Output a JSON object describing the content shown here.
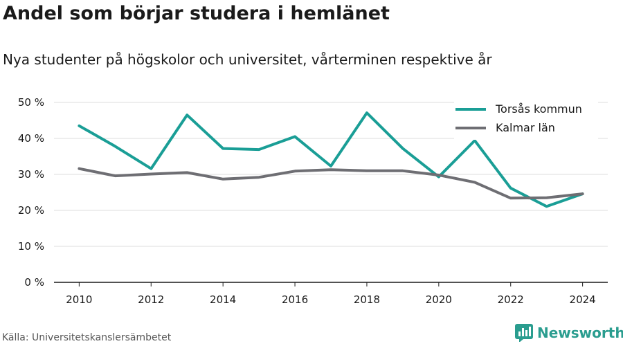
{
  "header": {
    "title": "Andel som börjar studera i hemlänet",
    "subtitle": "Nya studenter på högskolor och universitet, vårterminen respektive år"
  },
  "footer": {
    "source": "Källa: Universitetskanslersämbetet",
    "brand": "Newsworthy",
    "brand_icon": "bar-chart-icon",
    "brand_color": "#2a9d8f"
  },
  "chart_data": {
    "type": "line",
    "title": "Andel som börjar studera i hemlänet",
    "subtitle": "Nya studenter på högskolor och universitet, vårterminen respektive år",
    "xlabel": "",
    "ylabel": "",
    "x": [
      2010,
      2011,
      2012,
      2013,
      2014,
      2015,
      2016,
      2017,
      2018,
      2019,
      2020,
      2021,
      2022,
      2023,
      2024
    ],
    "x_ticks": [
      "2010",
      "2012",
      "2014",
      "2016",
      "2018",
      "2020",
      "2022",
      "2024"
    ],
    "x_tick_values": [
      2010,
      2012,
      2014,
      2016,
      2018,
      2020,
      2022,
      2024
    ],
    "y_ticks": [
      "0 %",
      "10 %",
      "20 %",
      "30 %",
      "40 %",
      "50 %"
    ],
    "y_tick_values": [
      0,
      10,
      20,
      30,
      40,
      50
    ],
    "ylim": [
      0,
      50
    ],
    "xlim": [
      2009.3,
      2024.7
    ],
    "grid": "horizontal",
    "legend_position": "top-right",
    "series": [
      {
        "name": "Torsås kommun",
        "color": "#1a9e96",
        "values": [
          43.5,
          37.8,
          31.6,
          46.5,
          37.2,
          36.9,
          40.5,
          32.3,
          47.1,
          37.2,
          29.3,
          39.4,
          26.2,
          21.1,
          24.6
        ]
      },
      {
        "name": "Kalmar län",
        "color": "#6e6e73",
        "values": [
          31.6,
          29.6,
          30.1,
          30.5,
          28.7,
          29.2,
          30.9,
          31.3,
          31.0,
          31.0,
          29.8,
          27.8,
          23.4,
          23.5,
          24.6
        ]
      }
    ]
  }
}
